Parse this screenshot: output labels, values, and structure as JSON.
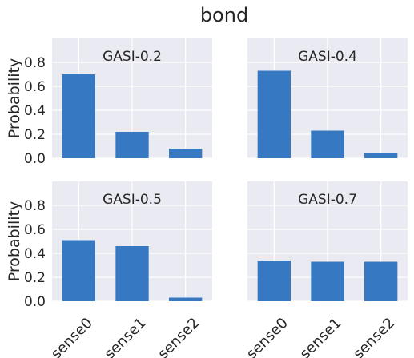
{
  "chart_data": {
    "title": "bond",
    "type": "bar",
    "bar_color": "#3778c2",
    "panel_bg": "#eaeaf2",
    "grid": true,
    "ylabel": "Probability",
    "ylim": [
      0,
      1.0
    ],
    "yticks": [
      "0.0",
      "0.2",
      "0.4",
      "0.6",
      "0.8"
    ],
    "categories": [
      "sense0",
      "sense1",
      "sense2"
    ],
    "panels": [
      {
        "title": "GASI-0.2",
        "values": [
          0.7,
          0.22,
          0.08
        ]
      },
      {
        "title": "GASI-0.4",
        "values": [
          0.73,
          0.23,
          0.04
        ]
      },
      {
        "title": "GASI-0.5",
        "values": [
          0.51,
          0.46,
          0.03
        ]
      },
      {
        "title": "GASI-0.7",
        "values": [
          0.34,
          0.33,
          0.33
        ]
      }
    ]
  }
}
